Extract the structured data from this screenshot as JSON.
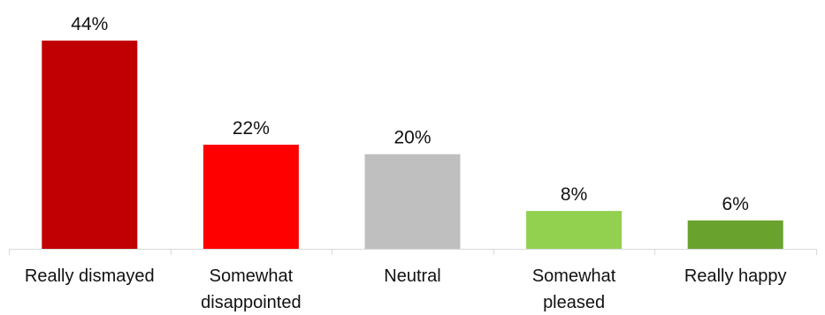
{
  "chart_data": {
    "type": "bar",
    "title": "",
    "xlabel": "",
    "ylabel": "",
    "categories": [
      [
        "Really dismayed"
      ],
      [
        "Somewhat",
        "disappointed"
      ],
      [
        "Neutral"
      ],
      [
        "Somewhat",
        "pleased"
      ],
      [
        "Really happy"
      ]
    ],
    "values": [
      44,
      22,
      20,
      8,
      6
    ],
    "value_labels": [
      "44%",
      "22%",
      "20%",
      "8%",
      "6%"
    ],
    "colors": [
      "#c00000",
      "#ff0000",
      "#bfbfbf",
      "#92d050",
      "#6aa22e"
    ],
    "ylim": [
      0,
      44
    ],
    "grid": false,
    "legend": "none"
  }
}
